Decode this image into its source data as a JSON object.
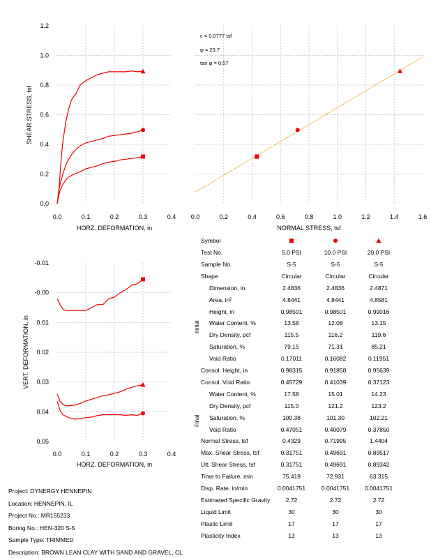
{
  "colors": {
    "series": "#ee0000",
    "fit_line": "#f0a020",
    "grid": "#c8c8c8"
  },
  "chart_data": [
    {
      "id": "shear-vs-horz",
      "type": "line",
      "xlabel": "HORZ. DEFORMATION, in",
      "ylabel": "SHEAR STRESS, tsf",
      "xlim": [
        0,
        0.4
      ],
      "ylim": [
        0,
        1.2
      ],
      "xticks": [
        "0.0",
        "0.1",
        "0.2",
        "0.3",
        "0.4"
      ],
      "yticks": [
        "0.0",
        "0.2",
        "0.4",
        "0.6",
        "0.8",
        "1.0",
        "1.2"
      ],
      "grid": true,
      "series": [
        {
          "name": "5.0 PSI",
          "marker": "square",
          "x": [
            0,
            0.005,
            0.01,
            0.02,
            0.03,
            0.04,
            0.05,
            0.06,
            0.08,
            0.1,
            0.12,
            0.14,
            0.16,
            0.18,
            0.2,
            0.22,
            0.24,
            0.26,
            0.28,
            0.3
          ],
          "y": [
            0,
            0.05,
            0.09,
            0.13,
            0.16,
            0.18,
            0.19,
            0.2,
            0.215,
            0.235,
            0.245,
            0.255,
            0.27,
            0.28,
            0.285,
            0.295,
            0.3,
            0.305,
            0.31,
            0.3175
          ]
        },
        {
          "name": "10.0 PSI",
          "marker": "circle",
          "x": [
            0,
            0.005,
            0.01,
            0.02,
            0.03,
            0.04,
            0.05,
            0.06,
            0.08,
            0.1,
            0.12,
            0.14,
            0.16,
            0.18,
            0.2,
            0.22,
            0.24,
            0.26,
            0.28,
            0.3
          ],
          "y": [
            0,
            0.08,
            0.13,
            0.2,
            0.26,
            0.3,
            0.33,
            0.355,
            0.39,
            0.41,
            0.42,
            0.43,
            0.44,
            0.455,
            0.46,
            0.465,
            0.47,
            0.475,
            0.485,
            0.4969
          ]
        },
        {
          "name": "20.0 PSI",
          "marker": "triangle",
          "x": [
            0,
            0.005,
            0.01,
            0.015,
            0.02,
            0.03,
            0.04,
            0.05,
            0.06,
            0.065,
            0.08,
            0.1,
            0.12,
            0.14,
            0.16,
            0.18,
            0.2,
            0.22,
            0.24,
            0.26,
            0.28,
            0.3
          ],
          "y": [
            0,
            0.06,
            0.2,
            0.33,
            0.42,
            0.55,
            0.64,
            0.7,
            0.73,
            0.74,
            0.8,
            0.83,
            0.85,
            0.87,
            0.88,
            0.89,
            0.89,
            0.89,
            0.89,
            0.895,
            0.89,
            0.8934
          ]
        }
      ]
    },
    {
      "id": "shear-vs-normal",
      "type": "scatter",
      "xlabel": "NORMAL STRESS, tsf",
      "ylabel": "",
      "xlim": [
        0,
        1.6
      ],
      "ylim": [
        0,
        1.2
      ],
      "xticks": [
        "0.0",
        "0.2",
        "0.4",
        "0.6",
        "0.8",
        "1.0",
        "1.2",
        "1.4",
        "1.6"
      ],
      "grid": true,
      "annotations": [
        "c = 0.0777 tsf",
        "φ = 29.7",
        "tan φ = 0.57"
      ],
      "fit_line": {
        "intercept": 0.0777,
        "slope": 0.57
      },
      "points": [
        {
          "name": "5.0 PSI",
          "marker": "square",
          "x": 0.4329,
          "y": 0.31751
        },
        {
          "name": "10.0 PSI",
          "marker": "circle",
          "x": 0.71995,
          "y": 0.49691
        },
        {
          "name": "20.0 PSI",
          "marker": "triangle",
          "x": 1.4404,
          "y": 0.89517
        }
      ]
    },
    {
      "id": "vert-vs-horz",
      "type": "line",
      "xlabel": "HORZ. DEFORMATION, in",
      "ylabel": "VERT. DEFORMATION, in",
      "xlim": [
        0,
        0.4
      ],
      "ylim": [
        -0.01,
        0.05
      ],
      "y_inverted": true,
      "xticks": [
        "0.0",
        "0.1",
        "0.2",
        "0.3",
        "0.4"
      ],
      "yticks": [
        "-0.01",
        "-0.00",
        "0.01",
        "0.02",
        "0.03",
        "0.04",
        "0.05"
      ],
      "grid": true,
      "series": [
        {
          "name": "5.0 PSI",
          "marker": "square",
          "x": [
            0,
            0.01,
            0.02,
            0.03,
            0.04,
            0.06,
            0.08,
            0.1,
            0.12,
            0.14,
            0.16,
            0.18,
            0.2,
            0.22,
            0.24,
            0.26,
            0.28,
            0.3
          ],
          "y": [
            0.002,
            0.004,
            0.0055,
            0.006,
            0.006,
            0.006,
            0.006,
            0.006,
            0.005,
            0.004,
            0.004,
            0.002,
            0.0015,
            0.0,
            -0.001,
            -0.0025,
            -0.003,
            -0.0045
          ]
        },
        {
          "name": "10.0 PSI",
          "marker": "circle",
          "x": [
            0,
            0.01,
            0.02,
            0.03,
            0.04,
            0.06,
            0.08,
            0.1,
            0.12,
            0.14,
            0.16,
            0.18,
            0.2,
            0.22,
            0.24,
            0.26,
            0.28,
            0.3
          ],
          "y": [
            0.0365,
            0.0395,
            0.041,
            0.0415,
            0.042,
            0.0425,
            0.0423,
            0.042,
            0.0418,
            0.0413,
            0.041,
            0.041,
            0.041,
            0.041,
            0.0412,
            0.041,
            0.0412,
            0.0405
          ]
        },
        {
          "name": "20.0 PSI",
          "marker": "triangle",
          "x": [
            0,
            0.01,
            0.02,
            0.03,
            0.04,
            0.06,
            0.08,
            0.1,
            0.12,
            0.14,
            0.16,
            0.18,
            0.2,
            0.22,
            0.24,
            0.26,
            0.28,
            0.3
          ],
          "y": [
            0.034,
            0.0365,
            0.0375,
            0.038,
            0.038,
            0.0378,
            0.0372,
            0.0364,
            0.0358,
            0.0352,
            0.0346,
            0.0343,
            0.0338,
            0.0333,
            0.0325,
            0.0318,
            0.0313,
            0.0309
          ]
        }
      ]
    }
  ],
  "table": {
    "symbol_label": "Symbol",
    "columns": [
      "5.0 PSI",
      "10.0 PSI",
      "20.0 PSI"
    ],
    "rows": [
      {
        "label": "Test No.",
        "indent": false,
        "values": [
          "5.0 PSI",
          "10.0 PSI",
          "20.0 PSI"
        ]
      },
      {
        "label": "Sample No.",
        "indent": false,
        "values": [
          "S-5",
          "S-5",
          "S-5"
        ]
      },
      {
        "label": "Shape",
        "indent": false,
        "values": [
          "Circular",
          "Circular",
          "Circular"
        ]
      },
      {
        "label": "Dimension, in",
        "indent": true,
        "values": [
          "2.4836",
          "2.4836",
          "2.4871"
        ]
      },
      {
        "label": "Area, in²",
        "indent": true,
        "values": [
          "4.8441",
          "4.8441",
          "4.8581"
        ]
      },
      {
        "label": "Height, in",
        "indent": true,
        "values": [
          "0.98501",
          "0.98501",
          "0.99016"
        ]
      },
      {
        "label": "Water Content, %",
        "indent": true,
        "values": [
          "13.58",
          "12.08",
          "13.15"
        ]
      },
      {
        "label": "Dry Density, pcf",
        "indent": true,
        "values": [
          "115.5",
          "116.2",
          "119.6"
        ]
      },
      {
        "label": "Saturation, %",
        "indent": true,
        "values": [
          "79.15",
          "71.31",
          "85.21"
        ]
      },
      {
        "label": "Void Ratio",
        "indent": true,
        "values": [
          "0.17011",
          "0.16082",
          "0.11951"
        ]
      },
      {
        "label": "Consol. Height, in",
        "indent": false,
        "values": [
          "0.98315",
          "0.91858",
          "0.95639"
        ]
      },
      {
        "label": "Consol. Void Ratio",
        "indent": false,
        "values": [
          "0.45729",
          "0.41039",
          "0.37123"
        ]
      },
      {
        "label": "Water Content, %",
        "indent": true,
        "values": [
          "17.58",
          "15.01",
          "14.23"
        ]
      },
      {
        "label": "Dry Density, pcf",
        "indent": true,
        "values": [
          "115.0",
          "121.2",
          "123.2"
        ]
      },
      {
        "label": "Saturation, %",
        "indent": true,
        "values": [
          "100.38",
          "101.30",
          "102.21"
        ]
      },
      {
        "label": "Void Ratio",
        "indent": true,
        "values": [
          "0.47051",
          "0.40079",
          "0.37850"
        ]
      },
      {
        "label": "Normal Stress, tsf",
        "indent": false,
        "values": [
          "0.4329",
          "0.71995",
          "1.4404"
        ]
      },
      {
        "label": "Max. Shear Stress, tsf",
        "indent": false,
        "values": [
          "0.31751",
          "0.49691",
          "0.89517"
        ]
      },
      {
        "label": "Ult. Shear Stress, tsf",
        "indent": false,
        "values": [
          "0.31751",
          "0.49691",
          "0.89342"
        ]
      },
      {
        "label": "Time to Failure, min",
        "indent": false,
        "values": [
          "75.419",
          "72.931",
          "63.315"
        ]
      },
      {
        "label": "Disp. Rate, in/min",
        "indent": false,
        "values": [
          "0.0041751",
          "0.0041751",
          "0.0041751"
        ]
      },
      {
        "label": "Estimated Specific Gravity",
        "indent": false,
        "values": [
          "2.72",
          "2.72",
          "2.72"
        ]
      },
      {
        "label": "Liquid Limit",
        "indent": false,
        "values": [
          "30",
          "30",
          "30"
        ]
      },
      {
        "label": "Plastic Limit",
        "indent": false,
        "values": [
          "17",
          "17",
          "17"
        ]
      },
      {
        "label": "Plasticity Index",
        "indent": false,
        "values": [
          "13",
          "13",
          "13"
        ]
      }
    ],
    "group_initial": "Initial",
    "group_final": "Final"
  },
  "project_info": [
    "Project: DYNERGY HENNEPIN",
    "Location: HENNEPIN, IL",
    "Project No.: MR155233",
    "Boring No.: HEN-320 S-5",
    "Sample Type: TRIMMED",
    "Description: BROWN LEAN CLAY WITH SAND AND GRAVEL, CL"
  ]
}
